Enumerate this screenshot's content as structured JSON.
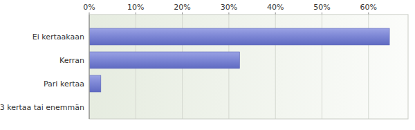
{
  "chart_data": {
    "type": "bar",
    "orientation": "horizontal",
    "categories": [
      "Ei kertaakaan",
      "Kerran",
      "Pari kertaa",
      "3 kertaa tai enemmän"
    ],
    "values": [
      64.5,
      32.3,
      2.5,
      0
    ],
    "color": "#7b85d4",
    "xlim": [
      0,
      68.5
    ],
    "xticks": [
      {
        "value": 0,
        "label": "0%"
      },
      {
        "value": 10,
        "label": "10%"
      },
      {
        "value": 20,
        "label": "20%"
      },
      {
        "value": 30,
        "label": "30%"
      },
      {
        "value": 40,
        "label": "40%"
      },
      {
        "value": 50,
        "label": "50%"
      },
      {
        "value": 60,
        "label": "60%"
      }
    ],
    "grid": true
  }
}
